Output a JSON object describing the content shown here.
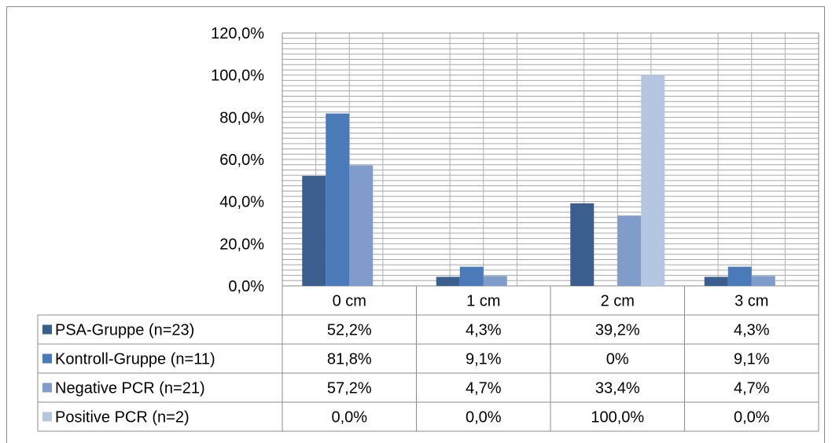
{
  "chart_data": {
    "type": "bar",
    "ylim": [
      0,
      120
    ],
    "yticks": [
      "0,0%",
      "20,0%",
      "40,0%",
      "60,0%",
      "80,0%",
      "100,0%",
      "120,0%"
    ],
    "yticks_values": [
      0,
      20,
      40,
      60,
      80,
      100,
      120
    ],
    "grid": true,
    "legend": "data-table",
    "categories": [
      "0 cm",
      "1 cm",
      "2 cm",
      "3 cm"
    ],
    "series": [
      {
        "name": "PSA-Gruppe (n=23)",
        "color": "#3a5f8f",
        "values": [
          52.2,
          4.3,
          39.2,
          4.3
        ],
        "labels": [
          "52,2%",
          "4,3%",
          "39,2%",
          "4,3%"
        ]
      },
      {
        "name": "Kontroll-Gruppe (n=11)",
        "color": "#4a7ab7",
        "values": [
          81.8,
          9.1,
          0,
          9.1
        ],
        "labels": [
          "81,8%",
          "9,1%",
          "0%",
          "9,1%"
        ]
      },
      {
        "name": "Negative PCR (n=21)",
        "color": "#7f9ccb",
        "values": [
          57.2,
          4.7,
          33.4,
          4.7
        ],
        "labels": [
          "57,2%",
          "4,7%",
          "33,4%",
          "4,7%"
        ]
      },
      {
        "name": "Positive PCR (n=2)",
        "color": "#b4c6e0",
        "values": [
          0.0,
          0.0,
          100.0,
          0.0
        ],
        "labels": [
          "0,0%",
          "0,0%",
          "100,0%",
          "0,0%"
        ]
      }
    ]
  }
}
